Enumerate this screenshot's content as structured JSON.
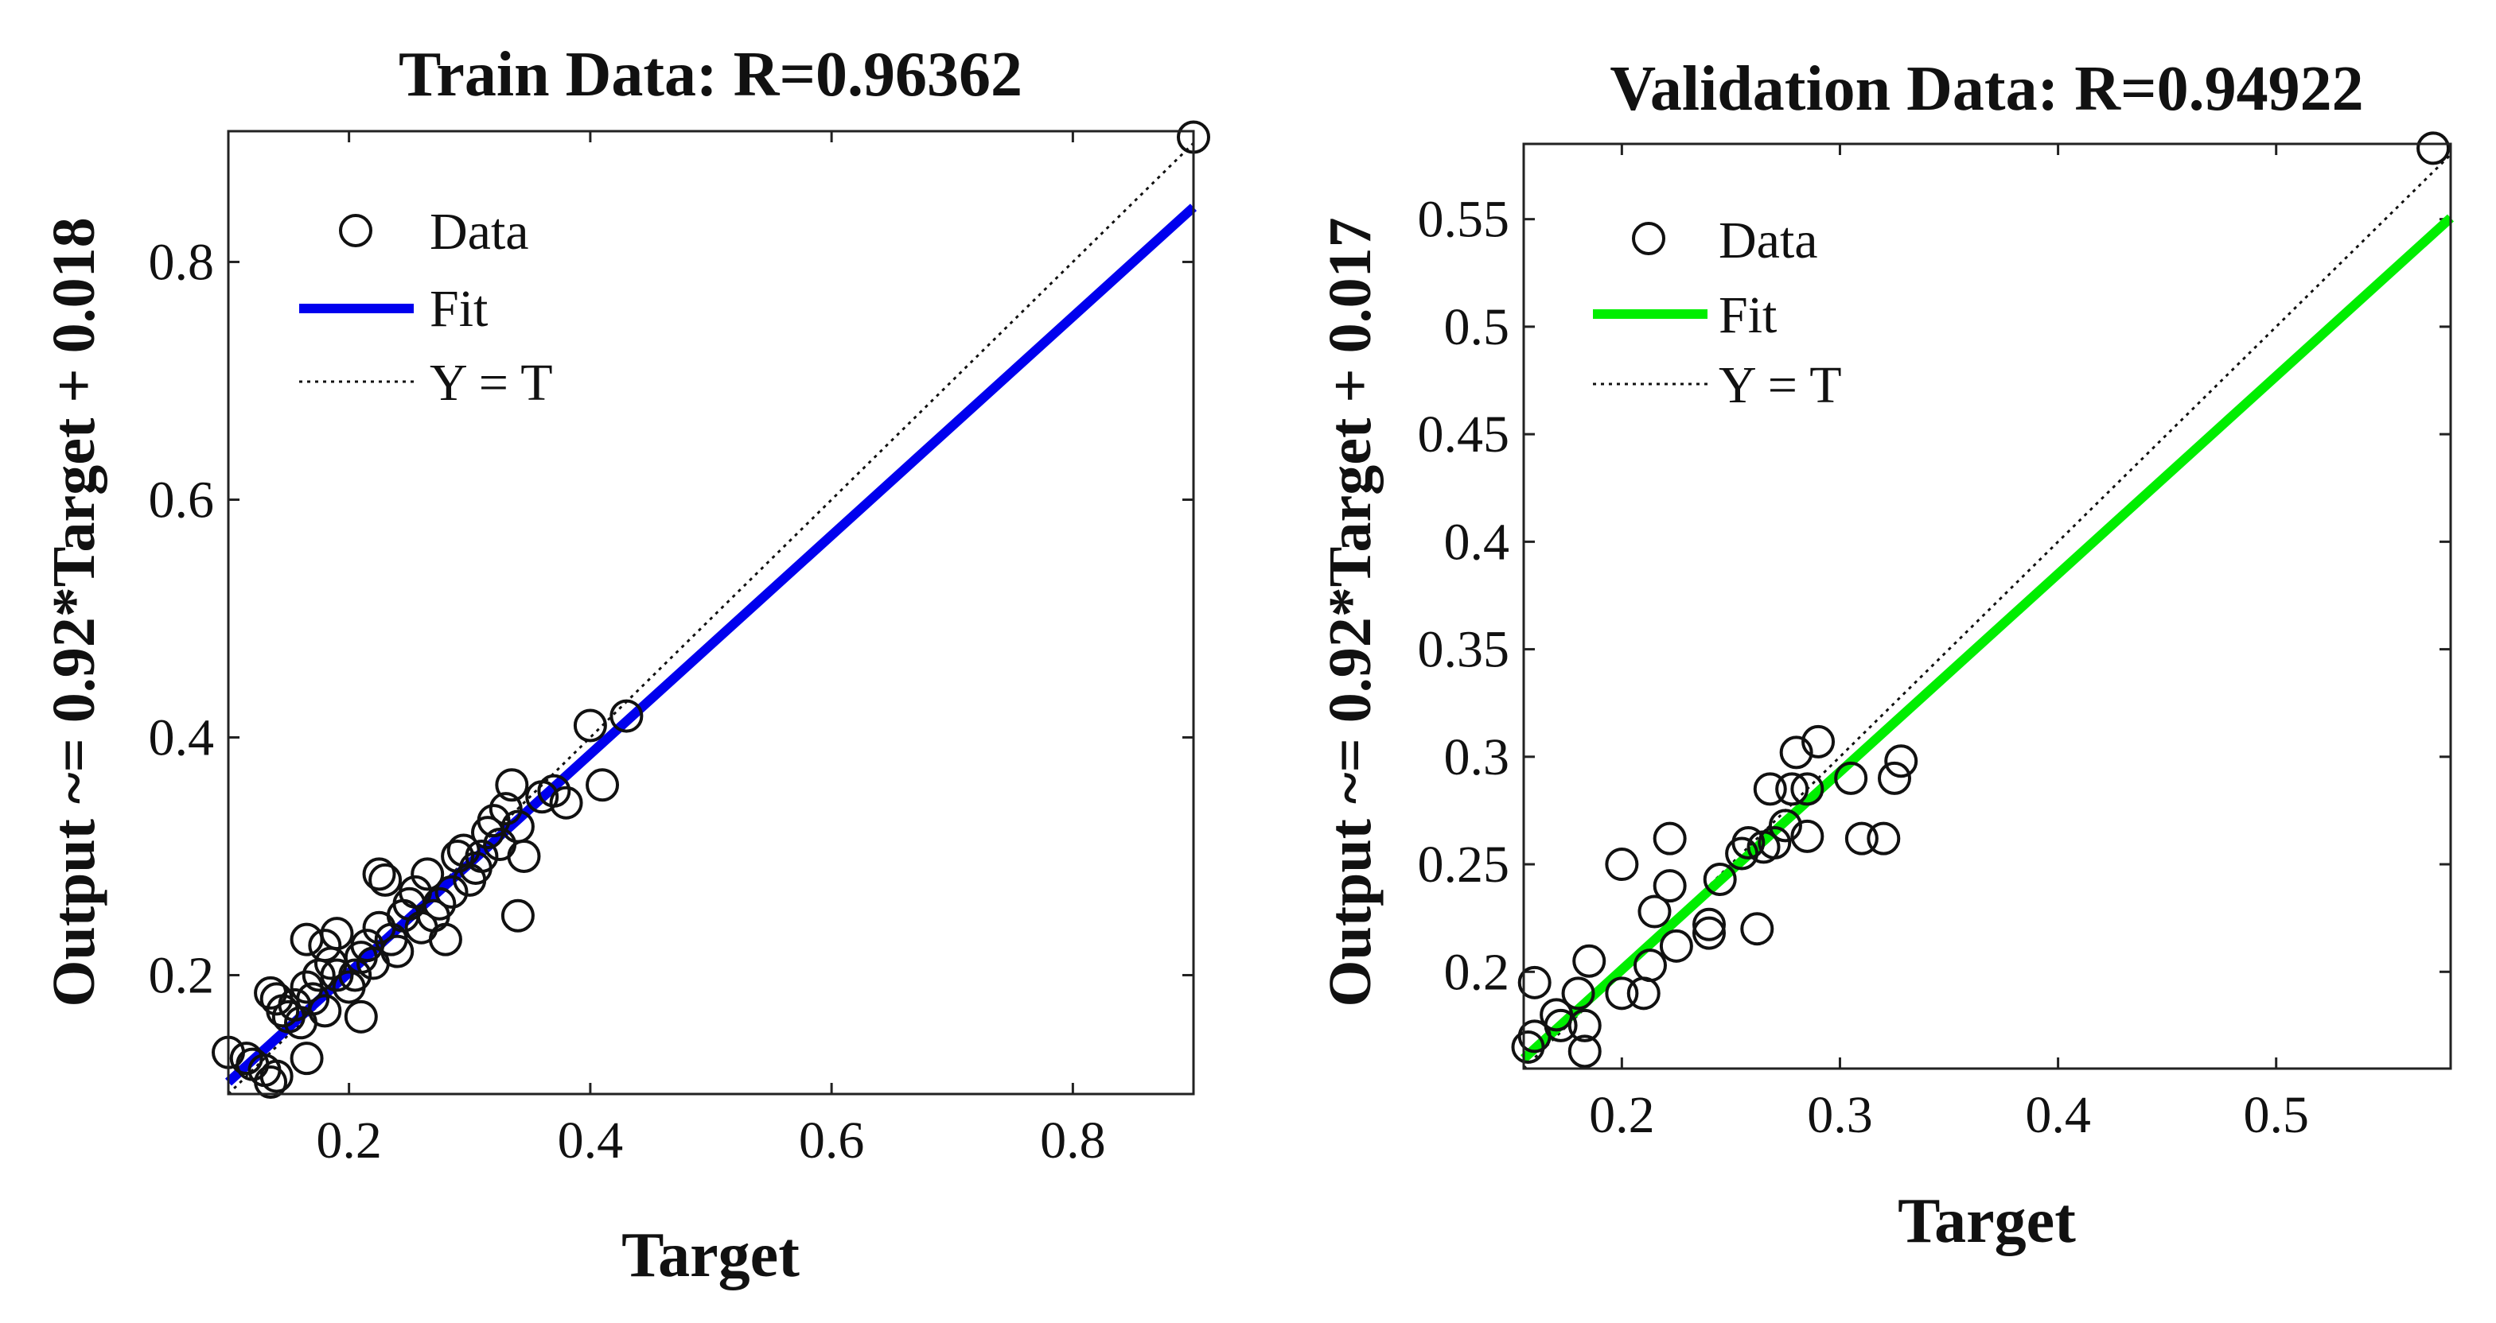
{
  "chart_data": [
    {
      "type": "scatter",
      "title": "Train Data: R=0.96362",
      "xlabel": "Target",
      "ylabel": "Output ~= 0.92*Target + 0.018",
      "xlim": [
        0.1,
        0.9
      ],
      "ylim": [
        0.1,
        0.91
      ],
      "xticks": [
        0.2,
        0.4,
        0.6,
        0.8
      ],
      "yticks": [
        0.2,
        0.4,
        0.6,
        0.8
      ],
      "fit": {
        "slope": 0.92,
        "intercept": 0.018,
        "color": "#0000ee"
      },
      "legend": {
        "position": "top-left",
        "data_label": "Data",
        "fit_label": "Fit",
        "ident_label": "Y = T"
      },
      "series": [
        {
          "name": "Data",
          "points": [
            [
              0.1,
              0.135
            ],
            [
              0.115,
              0.13
            ],
            [
              0.12,
              0.125
            ],
            [
              0.13,
              0.12
            ],
            [
              0.135,
              0.11
            ],
            [
              0.14,
              0.115
            ],
            [
              0.135,
              0.185
            ],
            [
              0.14,
              0.18
            ],
            [
              0.145,
              0.17
            ],
            [
              0.15,
              0.165
            ],
            [
              0.155,
              0.175
            ],
            [
              0.16,
              0.16
            ],
            [
              0.165,
              0.13
            ],
            [
              0.165,
              0.19
            ],
            [
              0.17,
              0.18
            ],
            [
              0.175,
              0.2
            ],
            [
              0.18,
              0.17
            ],
            [
              0.185,
              0.21
            ],
            [
              0.19,
              0.2
            ],
            [
              0.165,
              0.23
            ],
            [
              0.18,
              0.225
            ],
            [
              0.19,
              0.235
            ],
            [
              0.2,
              0.19
            ],
            [
              0.205,
              0.2
            ],
            [
              0.21,
              0.165
            ],
            [
              0.21,
              0.215
            ],
            [
              0.215,
              0.225
            ],
            [
              0.22,
              0.21
            ],
            [
              0.225,
              0.24
            ],
            [
              0.225,
              0.285
            ],
            [
              0.23,
              0.28
            ],
            [
              0.235,
              0.23
            ],
            [
              0.24,
              0.22
            ],
            [
              0.245,
              0.25
            ],
            [
              0.25,
              0.26
            ],
            [
              0.255,
              0.27
            ],
            [
              0.26,
              0.24
            ],
            [
              0.265,
              0.285
            ],
            [
              0.27,
              0.25
            ],
            [
              0.275,
              0.26
            ],
            [
              0.28,
              0.23
            ],
            [
              0.285,
              0.27
            ],
            [
              0.29,
              0.3
            ],
            [
              0.295,
              0.305
            ],
            [
              0.3,
              0.28
            ],
            [
              0.305,
              0.29
            ],
            [
              0.31,
              0.3
            ],
            [
              0.315,
              0.32
            ],
            [
              0.32,
              0.33
            ],
            [
              0.325,
              0.31
            ],
            [
              0.33,
              0.34
            ],
            [
              0.335,
              0.36
            ],
            [
              0.34,
              0.325
            ],
            [
              0.345,
              0.3
            ],
            [
              0.34,
              0.25
            ],
            [
              0.36,
              0.35
            ],
            [
              0.37,
              0.355
            ],
            [
              0.38,
              0.345
            ],
            [
              0.41,
              0.36
            ],
            [
              0.4,
              0.41
            ],
            [
              0.43,
              0.418
            ],
            [
              0.9,
              0.905
            ]
          ]
        }
      ]
    },
    {
      "type": "scatter",
      "title": "Validation Data: R=0.94922",
      "xlabel": "Target",
      "ylabel": "Output ~= 0.92*Target + 0.017",
      "xlim": [
        0.155,
        0.58
      ],
      "ylim": [
        0.155,
        0.585
      ],
      "xticks": [
        0.2,
        0.3,
        0.4,
        0.5
      ],
      "yticks": [
        0.2,
        0.25,
        0.3,
        0.35,
        0.4,
        0.45,
        0.5,
        0.55
      ],
      "fit": {
        "slope": 0.92,
        "intercept": 0.017,
        "color": "#00ee00"
      },
      "legend": {
        "position": "top-left",
        "data_label": "Data",
        "fit_label": "Fit",
        "ident_label": "Y = T"
      },
      "series": [
        {
          "name": "Data",
          "points": [
            [
              0.157,
              0.165
            ],
            [
              0.16,
              0.17
            ],
            [
              0.16,
              0.195
            ],
            [
              0.17,
              0.18
            ],
            [
              0.172,
              0.175
            ],
            [
              0.18,
              0.19
            ],
            [
              0.183,
              0.175
            ],
            [
              0.183,
              0.163
            ],
            [
              0.185,
              0.205
            ],
            [
              0.2,
              0.19
            ],
            [
              0.2,
              0.25
            ],
            [
              0.21,
              0.19
            ],
            [
              0.213,
              0.203
            ],
            [
              0.215,
              0.228
            ],
            [
              0.222,
              0.24
            ],
            [
              0.222,
              0.262
            ],
            [
              0.225,
              0.212
            ],
            [
              0.24,
              0.218
            ],
            [
              0.24,
              0.222
            ],
            [
              0.245,
              0.243
            ],
            [
              0.255,
              0.255
            ],
            [
              0.258,
              0.26
            ],
            [
              0.262,
              0.22
            ],
            [
              0.265,
              0.258
            ],
            [
              0.268,
              0.285
            ],
            [
              0.27,
              0.26
            ],
            [
              0.275,
              0.268
            ],
            [
              0.278,
              0.285
            ],
            [
              0.28,
              0.302
            ],
            [
              0.285,
              0.285
            ],
            [
              0.285,
              0.263
            ],
            [
              0.29,
              0.307
            ],
            [
              0.305,
              0.29
            ],
            [
              0.31,
              0.262
            ],
            [
              0.32,
              0.262
            ],
            [
              0.325,
              0.29
            ],
            [
              0.328,
              0.298
            ],
            [
              0.572,
              0.583
            ]
          ]
        }
      ]
    }
  ]
}
